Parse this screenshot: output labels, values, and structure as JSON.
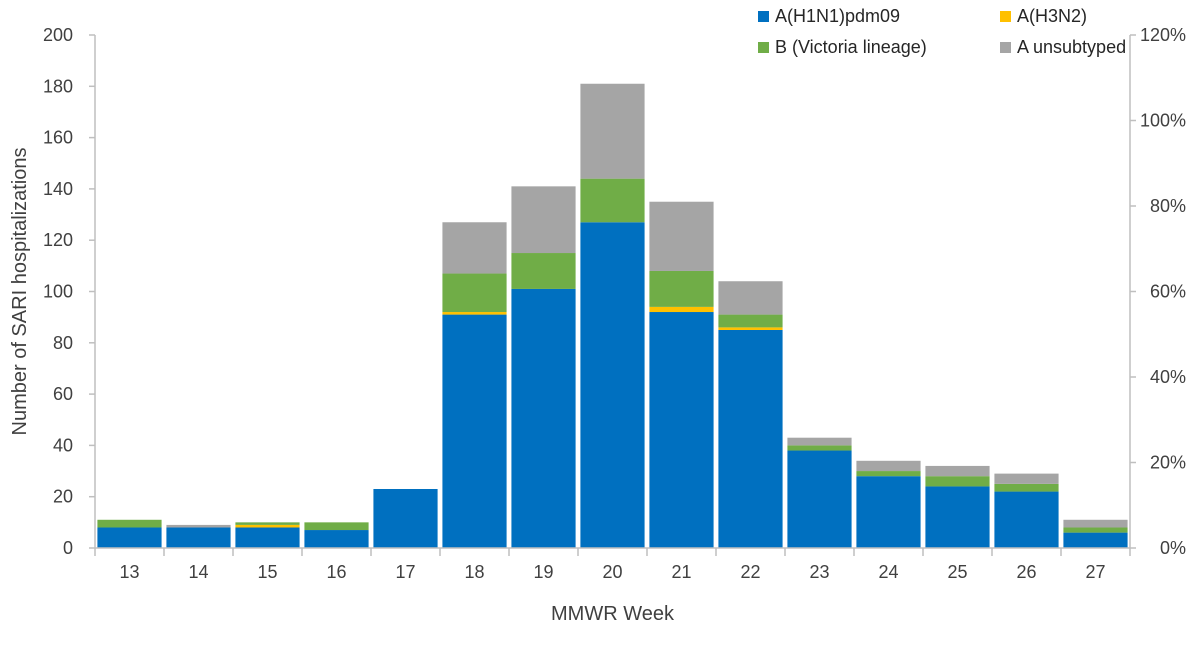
{
  "chart_data": {
    "type": "bar",
    "stacked": true,
    "categories": [
      "13",
      "14",
      "15",
      "16",
      "17",
      "18",
      "19",
      "20",
      "21",
      "22",
      "23",
      "24",
      "25",
      "26",
      "27"
    ],
    "series": [
      {
        "name": "A(H1N1)pdm09",
        "color": "#0070C0",
        "values": [
          8,
          8,
          8,
          7,
          23,
          91,
          101,
          127,
          92,
          85,
          38,
          28,
          24,
          22,
          6
        ]
      },
      {
        "name": "A(H3N2)",
        "color": "#FFC000",
        "values": [
          0,
          0,
          1,
          0,
          0,
          1,
          0,
          0,
          2,
          1,
          0,
          0,
          0,
          0,
          0
        ]
      },
      {
        "name": "B (Victoria lineage)",
        "color": "#70AD47",
        "values": [
          3,
          0,
          1,
          3,
          0,
          15,
          14,
          17,
          14,
          5,
          2,
          2,
          4,
          3,
          2
        ]
      },
      {
        "name": "A unsubtyped",
        "color": "#A5A5A5",
        "values": [
          0,
          1,
          0,
          0,
          0,
          20,
          26,
          37,
          27,
          13,
          3,
          4,
          4,
          4,
          3
        ]
      }
    ],
    "xlabel": "MMWR Week",
    "ylabel": "Number of SARI hospitalizations",
    "ylim": [
      0,
      200
    ],
    "yticks": [
      "0",
      "20",
      "40",
      "60",
      "80",
      "100",
      "120",
      "140",
      "160",
      "180",
      "200"
    ],
    "y2lim": [
      0,
      120
    ],
    "y2ticks": [
      "0%",
      "20%",
      "40%",
      "60%",
      "80%",
      "100%",
      "120%"
    ],
    "grid": false,
    "legend_position": "top-right"
  }
}
